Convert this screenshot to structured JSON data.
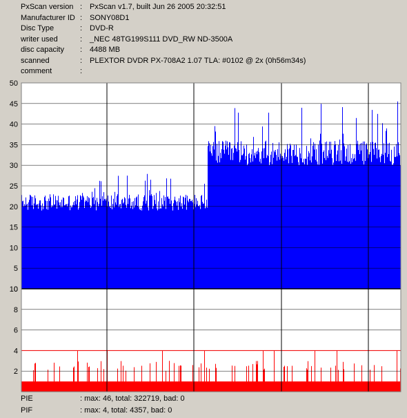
{
  "info": [
    {
      "key": "PxScan version",
      "value": "PxScan v1.7, built Jun 26 2005 20:32:51"
    },
    {
      "key": "Manufacturer ID",
      "value": "SONY08D1"
    },
    {
      "key": "Disc Type",
      "value": "DVD-R"
    },
    {
      "key": "writer used",
      "value": "_NEC 48TG199S111 DVD_RW ND-3500A"
    },
    {
      "key": "disc capacity",
      "value": "4488 MB"
    },
    {
      "key": "scanned",
      "value": "PLEXTOR DVDR PX-708A2 1.07 TLA: #0102 @ 2x (0h56m34s)"
    },
    {
      "key": "comment",
      "value": ""
    }
  ],
  "separator": ":",
  "footer": {
    "pie": {
      "label": "PIE",
      "summary": ": max: 46, total: 322719, bad: 0"
    },
    "pif": {
      "label": "PIF",
      "summary": ": max: 4, total: 4357, bad: 0"
    }
  },
  "colors": {
    "pie": "#0000ff",
    "pif": "#ff0000",
    "background": "#ffffff",
    "grid": "#000000",
    "panel": "#d4d0c8"
  },
  "chart_data": [
    {
      "type": "bar",
      "name": "PIE",
      "ylim": [
        0,
        50
      ],
      "yticks": [
        "50",
        "45",
        "40",
        "35",
        "30",
        "25",
        "20",
        "15",
        "10",
        "5",
        "0"
      ],
      "threshold": null,
      "segments": [
        {
          "x_start": 0.0,
          "x_end": 0.49,
          "base": 19,
          "spread": 4,
          "peak": 28
        },
        {
          "x_start": 0.49,
          "x_end": 1.0,
          "base": 30,
          "spread": 6,
          "peak": 46
        }
      ]
    },
    {
      "type": "bar",
      "name": "PIF",
      "ylim": [
        0,
        10
      ],
      "yticks": [
        "10",
        "8",
        "6",
        "4",
        "2"
      ],
      "threshold": 4,
      "segments": [
        {
          "x_start": 0.0,
          "x_end": 1.0,
          "base": 1,
          "spread": 1,
          "peak": 4
        }
      ]
    }
  ]
}
